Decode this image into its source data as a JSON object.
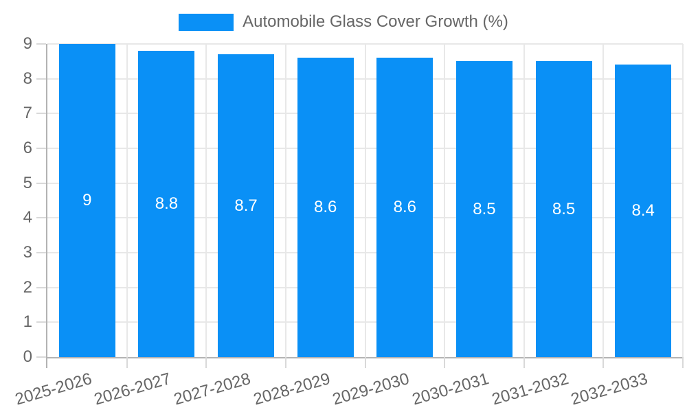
{
  "legend": {
    "label": "Automobile Glass Cover Growth (%)"
  },
  "chart_data": {
    "type": "bar",
    "title": "Automobile Glass Cover Growth (%)",
    "categories": [
      "2025-2026",
      "2026-2027",
      "2027-2028",
      "2028-2029",
      "2029-2030",
      "2030-2031",
      "2031-2032",
      "2032-2033"
    ],
    "values": [
      9,
      8.8,
      8.7,
      8.6,
      8.6,
      8.5,
      8.5,
      8.4
    ],
    "value_labels": [
      "9",
      "8.8",
      "8.7",
      "8.6",
      "8.6",
      "8.5",
      "8.5",
      "8.4"
    ],
    "xlabel": "",
    "ylabel": "",
    "ylim": [
      0,
      9
    ],
    "yticks": [
      0,
      1,
      2,
      3,
      4,
      5,
      6,
      7,
      8,
      9
    ],
    "grid": true,
    "legend_position": "top",
    "x_label_rotation_deg": -16,
    "bar_color": "#0a90f6",
    "value_label_color": "#ffffff",
    "axis_text_color": "#666666",
    "grid_color": "#e8e8e8",
    "axis_line_color": "#b3b3b3"
  }
}
